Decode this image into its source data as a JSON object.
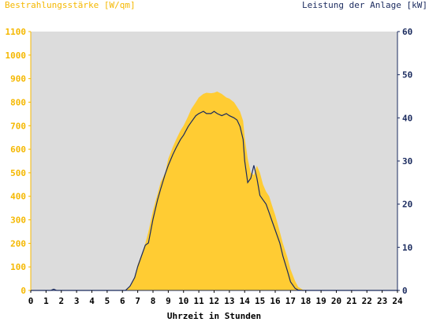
{
  "chart_data": {
    "type": "area",
    "left_axis_title": "Bestrahlungsstärke [W/qm]",
    "right_axis_title": "Leistung der Anlage [kW]",
    "xlabel": "Uhrzeit in Stunden",
    "x_ticks": [
      "0",
      "1",
      "2",
      "3",
      "4",
      "5",
      "6",
      "7",
      "8",
      "9",
      "10",
      "11",
      "12",
      "13",
      "14",
      "15",
      "16",
      "17",
      "18",
      "19",
      "20",
      "21",
      "22",
      "23",
      "24"
    ],
    "xlim": [
      0,
      24
    ],
    "left_ylim": [
      0,
      1100
    ],
    "left_ticks": [
      "0",
      "100",
      "200",
      "300",
      "400",
      "500",
      "600",
      "700",
      "800",
      "900",
      "1000",
      "1100"
    ],
    "right_ylim": [
      0,
      60
    ],
    "right_ticks": [
      "0",
      "10",
      "20",
      "30",
      "40",
      "50",
      "60"
    ],
    "grid": false,
    "colors": {
      "irradiance_fill": "#FFCC33",
      "power_line": "#1A2A5E",
      "plot_bg": "#DCDCDC",
      "left_axis_text": "#F5B800",
      "right_axis_text": "#1A2A5E"
    },
    "series": [
      {
        "axis": "left",
        "style": "filled-area",
        "x": [
          0,
          6.2,
          6.5,
          6.8,
          7.0,
          7.3,
          7.5,
          7.7,
          8.0,
          8.3,
          8.5,
          8.8,
          9.0,
          9.3,
          9.5,
          9.8,
          10.0,
          10.3,
          10.5,
          10.8,
          11.0,
          11.3,
          11.5,
          11.8,
          12.0,
          12.2,
          12.5,
          12.8,
          13.0,
          13.3,
          13.5,
          13.7,
          13.9,
          14.0,
          14.2,
          14.4,
          14.6,
          14.8,
          15.0,
          15.2,
          15.4,
          15.6,
          15.8,
          16.0,
          16.3,
          16.5,
          16.8,
          17.0,
          17.3,
          17.5,
          17.8,
          18.0,
          18.2,
          24
        ],
        "y": [
          0,
          0,
          20,
          60,
          110,
          160,
          200,
          250,
          340,
          410,
          460,
          500,
          560,
          610,
          640,
          680,
          700,
          740,
          770,
          800,
          820,
          835,
          840,
          838,
          840,
          845,
          835,
          820,
          815,
          800,
          780,
          760,
          720,
          650,
          560,
          500,
          490,
          530,
          500,
          450,
          420,
          400,
          360,
          320,
          250,
          200,
          140,
          90,
          40,
          15,
          3,
          0,
          0,
          0
        ]
      },
      {
        "axis": "right",
        "style": "line",
        "x": [
          0,
          1.3,
          1.5,
          1.7,
          6.2,
          6.5,
          6.8,
          7.0,
          7.3,
          7.5,
          7.7,
          8.0,
          8.3,
          8.5,
          8.8,
          9.0,
          9.3,
          9.5,
          9.8,
          10.0,
          10.3,
          10.5,
          10.8,
          11.0,
          11.3,
          11.5,
          11.8,
          12.0,
          12.2,
          12.5,
          12.8,
          13.0,
          13.3,
          13.5,
          13.7,
          13.9,
          14.0,
          14.2,
          14.4,
          14.6,
          14.8,
          15.0,
          15.2,
          15.4,
          15.6,
          15.8,
          16.0,
          16.3,
          16.5,
          16.8,
          17.0,
          17.3,
          17.5,
          17.8,
          18.0,
          18.2,
          24
        ],
        "y": [
          0,
          0,
          0.3,
          0,
          0,
          1.0,
          3.0,
          5.5,
          8.5,
          10.5,
          11.0,
          16.5,
          21.0,
          23.5,
          27.0,
          29.0,
          31.5,
          33.0,
          35.0,
          36.0,
          38.0,
          39.0,
          40.5,
          41.0,
          41.5,
          41.0,
          41.0,
          41.5,
          41.0,
          40.5,
          41.0,
          40.5,
          40.0,
          39.5,
          38.0,
          35.0,
          30.0,
          25.0,
          26.0,
          29.0,
          26.0,
          22.0,
          21.0,
          20.0,
          18.0,
          16.0,
          14.0,
          11.0,
          8.0,
          4.5,
          2.0,
          0.5,
          0.1,
          0,
          0,
          0,
          0
        ]
      }
    ]
  }
}
